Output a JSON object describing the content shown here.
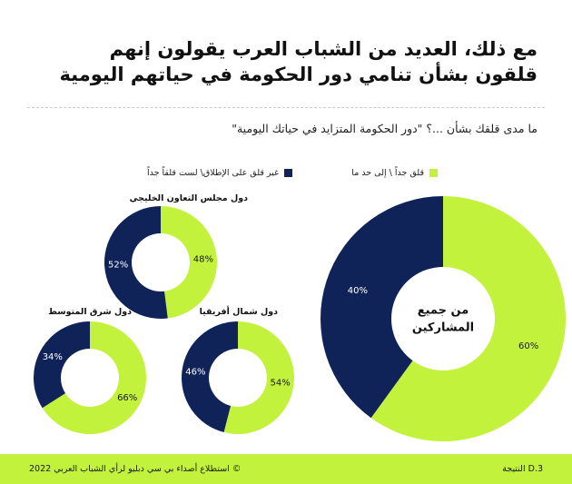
{
  "headline": {
    "line1": "مع ذلك، العديد من الشباب العرب يقولون إنهم",
    "line2": "قلقون بشأن تنامي دور الحكومة في حياتهم اليومية"
  },
  "question": "ما مدى قلقك بشأن ...؟ \"دور الحكومة المتزايد في حياتك اليومية\"",
  "legend": {
    "worried": "قلق جداً \\ إلى حد ما",
    "not_worried": "غير قلق على الإطلاق\\ لست قلقاً جداً"
  },
  "colors": {
    "green": "#c2f23b",
    "navy": "#0f2359"
  },
  "chart_data": [
    {
      "type": "pie",
      "title": "من جميع المشاركين",
      "labels": [
        "قلق جداً \\ إلى حد ما",
        "غير قلق على الإطلاق\\ لست قلقاً جداً"
      ],
      "values": [
        60,
        40
      ],
      "value_labels": [
        "60%",
        "40%"
      ]
    },
    {
      "type": "pie",
      "title": "دول مجلس التعاون الخليجي",
      "labels": [
        "قلق جداً \\ إلى حد ما",
        "غير قلق على الإطلاق\\ لست قلقاً جداً"
      ],
      "values": [
        48,
        52
      ],
      "value_labels": [
        "48%",
        "52%"
      ]
    },
    {
      "type": "pie",
      "title": "دول شمال أفريقيا",
      "labels": [
        "قلق جداً \\ إلى حد ما",
        "غير قلق على الإطلاق\\ لست قلقاً جداً"
      ],
      "values": [
        54,
        46
      ],
      "value_labels": [
        "54%",
        "46%"
      ]
    },
    {
      "type": "pie",
      "title": "دول شرق المتوسط",
      "labels": [
        "قلق جداً \\ إلى حد ما",
        "غير قلق على الإطلاق\\ لست قلقاً جداً"
      ],
      "values": [
        66,
        34
      ],
      "value_labels": [
        "66%",
        "34%"
      ]
    }
  ],
  "footer": {
    "result_id": "النتيجة D.3",
    "source": "© استطلاع أصداء بي سي دبليو لرأي الشباب العربي 2022"
  }
}
